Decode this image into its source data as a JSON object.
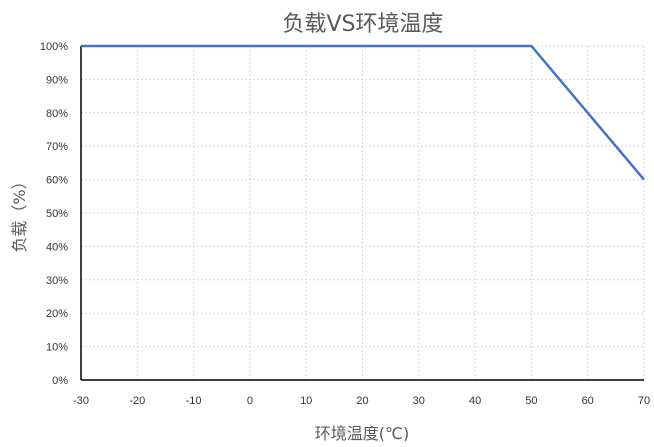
{
  "chart_data": {
    "type": "line",
    "title": "负载VS环境温度",
    "xlabel": "环境温度(℃)",
    "ylabel": "负载（%）",
    "xlim": [
      -30,
      70
    ],
    "ylim": [
      0,
      100
    ],
    "x_ticks": [
      -30,
      -20,
      -10,
      0,
      10,
      20,
      30,
      40,
      50,
      60,
      70
    ],
    "y_ticks": [
      0,
      10,
      20,
      30,
      40,
      50,
      60,
      70,
      80,
      90,
      100
    ],
    "y_tick_suffix": "%",
    "grid": true,
    "legend": "none",
    "series": [
      {
        "x": [
          -30,
          50,
          70
        ],
        "y": [
          100,
          100,
          60
        ],
        "color": "#4472c4"
      }
    ]
  }
}
